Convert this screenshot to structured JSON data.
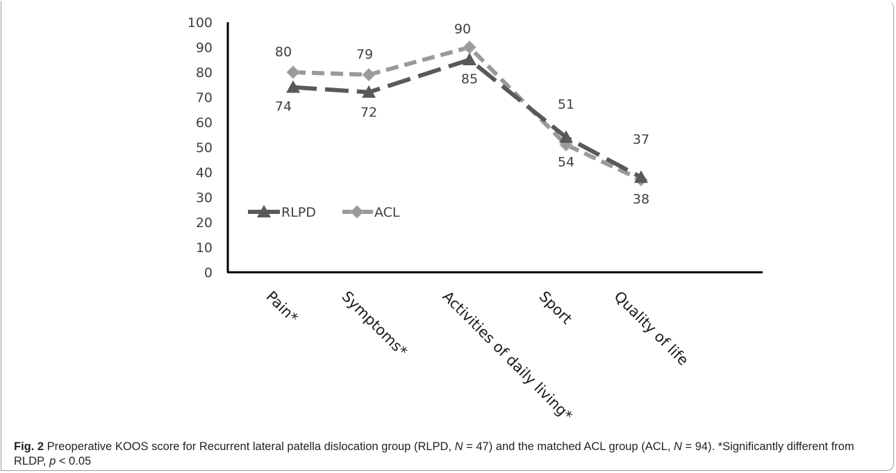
{
  "chart_data": {
    "type": "line",
    "title": "",
    "xlabel": "",
    "ylabel": "",
    "categories": [
      "Pain*",
      "Symptoms*",
      "Activities of daily living*",
      "Sport",
      "Quality of life"
    ],
    "ylim": [
      0,
      100
    ],
    "yticks": [
      0,
      10,
      20,
      30,
      40,
      50,
      60,
      70,
      80,
      90,
      100
    ],
    "grid": false,
    "legend_position": "lower-left, inside plot",
    "series": [
      {
        "name": "RLPD",
        "values": [
          74,
          72,
          85,
          54,
          38
        ],
        "color": "#595959",
        "marker": "triangle",
        "line_style": "long-dash",
        "data_labels": [
          "74",
          "72",
          "85",
          "54",
          "38"
        ]
      },
      {
        "name": "ACL",
        "values": [
          80,
          79,
          90,
          51,
          37
        ],
        "color": "#9a9a9a",
        "marker": "diamond",
        "line_style": "dash",
        "data_labels": [
          "80",
          "79",
          "90",
          "51",
          "37"
        ]
      }
    ]
  },
  "caption": {
    "label": "Fig. 2",
    "text_1": " Preoperative KOOS score for Recurrent lateral patella dislocation group (RLPD, ",
    "n1_var": "N",
    "n1_rest": " = 47) and the matched ACL group (ACL, ",
    "n2_var": "N",
    "n2_rest": " = 94). *Significantly different from RLDP, ",
    "p_var": "p",
    "p_rest": " < 0.05"
  }
}
